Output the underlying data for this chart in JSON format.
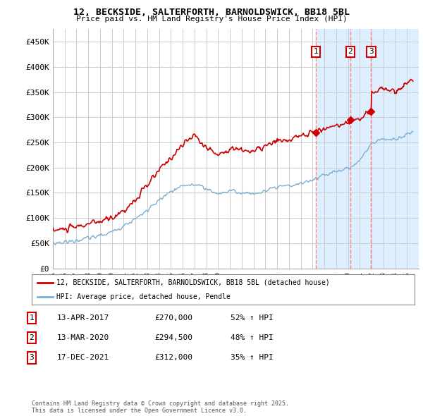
{
  "title1": "12, BECKSIDE, SALTERFORTH, BARNOLDSWICK, BB18 5BL",
  "title2": "Price paid vs. HM Land Registry's House Price Index (HPI)",
  "background_color": "#ffffff",
  "plot_bg_color": "#ffffff",
  "grid_color": "#cccccc",
  "red_color": "#cc0000",
  "blue_color": "#7bafd4",
  "shade_color": "#ddeeff",
  "dashed_color": "#ff8888",
  "ylim": [
    0,
    475000
  ],
  "yticks": [
    0,
    50000,
    100000,
    150000,
    200000,
    250000,
    300000,
    350000,
    400000,
    450000
  ],
  "ytick_labels": [
    "£0",
    "£50K",
    "£100K",
    "£150K",
    "£200K",
    "£250K",
    "£300K",
    "£350K",
    "£400K",
    "£450K"
  ],
  "purchases": [
    {
      "label": "1",
      "date_num": 2017.28,
      "price": 270000
    },
    {
      "label": "2",
      "date_num": 2020.2,
      "price": 294500
    },
    {
      "label": "3",
      "date_num": 2021.96,
      "price": 312000
    }
  ],
  "legend_line1": "12, BECKSIDE, SALTERFORTH, BARNOLDSWICK, BB18 5BL (detached house)",
  "legend_line2": "HPI: Average price, detached house, Pendle",
  "table_rows": [
    [
      "1",
      "13-APR-2017",
      "£270,000",
      "52% ↑ HPI"
    ],
    [
      "2",
      "13-MAR-2020",
      "£294,500",
      "48% ↑ HPI"
    ],
    [
      "3",
      "17-DEC-2021",
      "£312,000",
      "35% ↑ HPI"
    ]
  ],
  "footer": "Contains HM Land Registry data © Crown copyright and database right 2025.\nThis data is licensed under the Open Government Licence v3.0.",
  "xmin": 1995.0,
  "xmax": 2026.0
}
